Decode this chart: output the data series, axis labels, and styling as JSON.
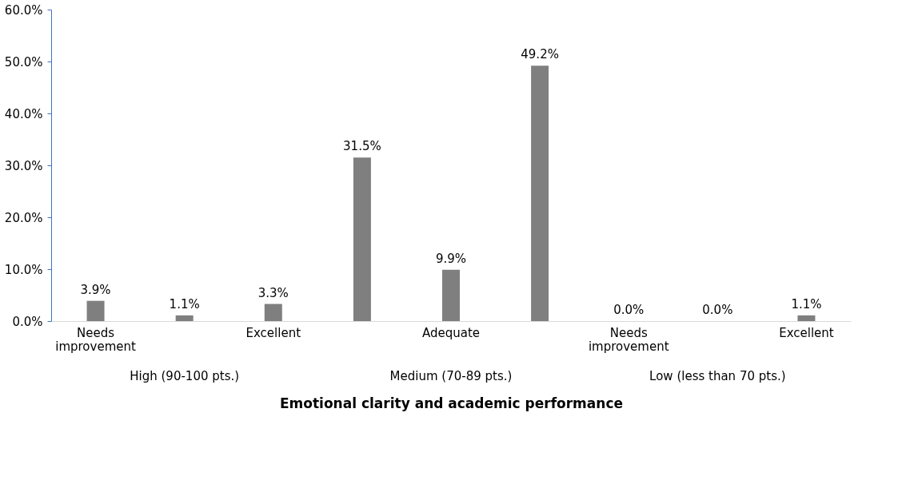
{
  "chart_data": {
    "type": "bar",
    "xlabel": "Emotional clarity and academic performance",
    "categories": [
      "Needs improvement",
      null,
      "Excellent",
      null,
      "Adequate",
      null,
      "Needs improvement",
      null,
      "Excellent"
    ],
    "values": [
      3.9,
      1.1,
      3.3,
      31.5,
      9.9,
      49.2,
      0.0,
      0.0,
      1.1
    ],
    "value_labels": [
      "3.9%",
      "1.1%",
      "3.3%",
      "31.5%",
      "9.9%",
      "49.2%",
      "0.0%",
      "0.0%",
      "1.1%"
    ],
    "color": "#7f7f7f",
    "ylim": [
      0,
      60
    ],
    "yticks": [
      {
        "value": 0,
        "label": "0.0%"
      },
      {
        "value": 10,
        "label": "10.0%"
      },
      {
        "value": 20,
        "label": "20.0%"
      },
      {
        "value": 30,
        "label": "30.0%"
      },
      {
        "value": 40,
        "label": "40.0%"
      },
      {
        "value": 50,
        "label": "50.0%"
      },
      {
        "value": 60,
        "label": "60.0%"
      }
    ],
    "annotations": [
      "High (90-100 pts.)",
      "Medium (70-89 pts.)",
      "Low (less than 70 pts.)"
    ],
    "grid": false
  }
}
